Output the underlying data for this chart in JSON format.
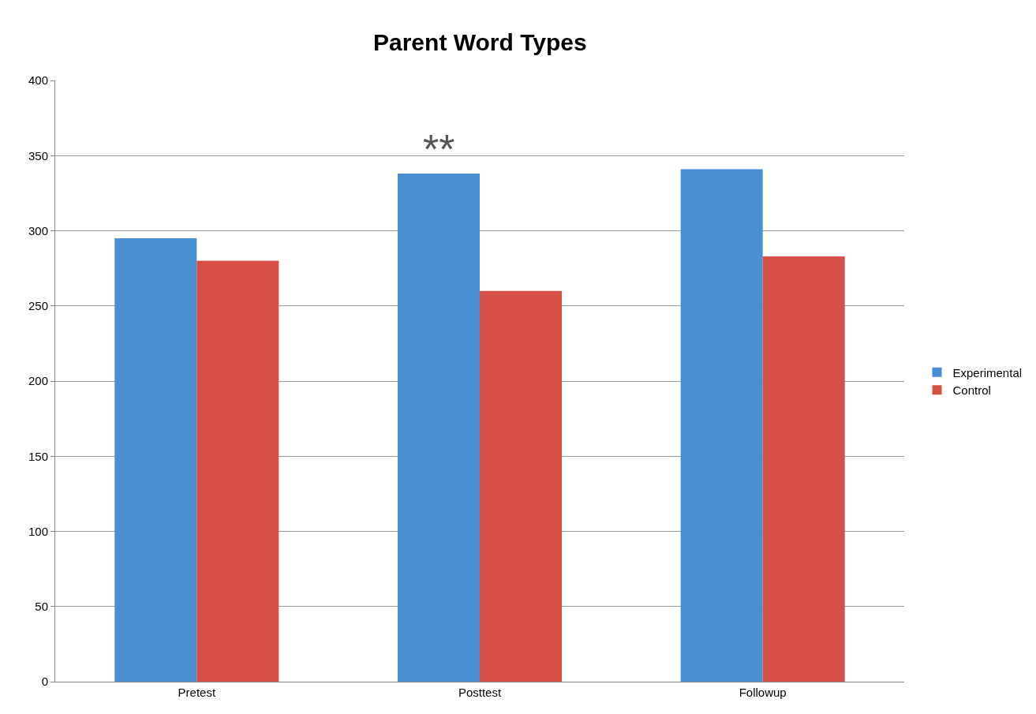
{
  "chart_data": {
    "type": "bar",
    "title": "Parent Word Types",
    "categories": [
      "Pretest",
      "Posttest",
      "Followup"
    ],
    "series": [
      {
        "name": "Experimental",
        "color": "#4a8fd2",
        "values": [
          295,
          338,
          341
        ]
      },
      {
        "name": "Control",
        "color": "#d65045",
        "values": [
          280,
          260,
          283
        ]
      }
    ],
    "ylim": [
      0,
      400
    ],
    "yticks": [
      0,
      50,
      100,
      150,
      200,
      250,
      300,
      350,
      400
    ],
    "grid": "y",
    "legend": "right",
    "annotations": [
      {
        "text": "**",
        "x": "Posttest",
        "y": 338
      }
    ]
  }
}
